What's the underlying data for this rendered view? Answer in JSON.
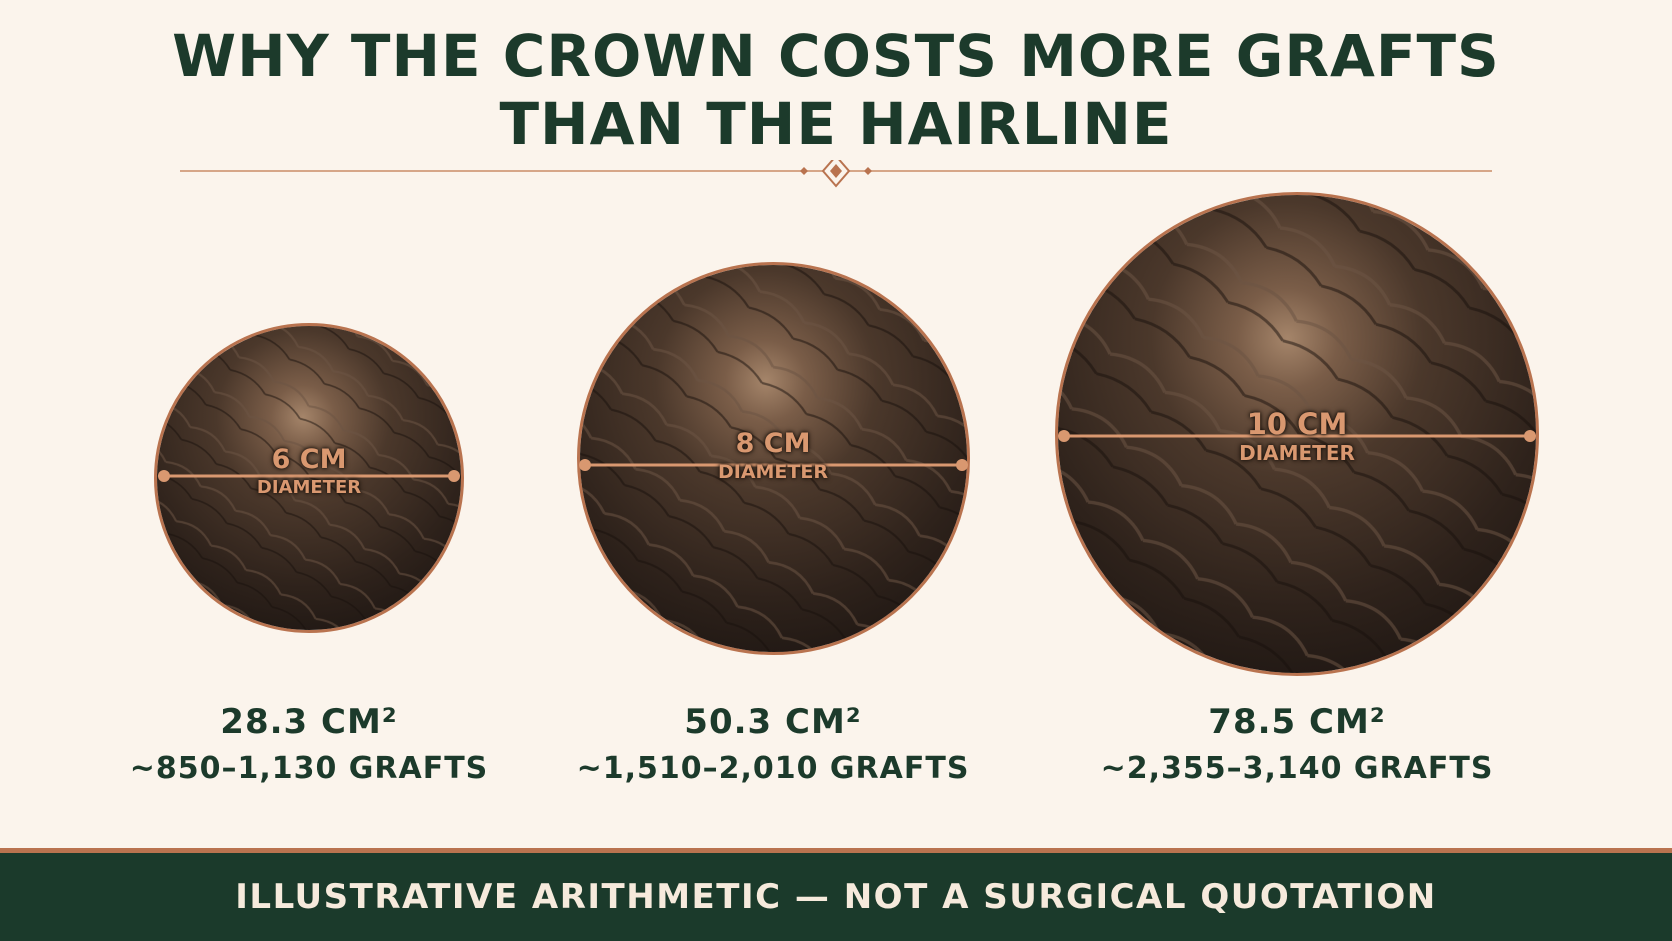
{
  "title": {
    "line1": "WHY THE CROWN COSTS MORE GRAFTS",
    "line2": "THAN THE HAIRLINE"
  },
  "crowns": [
    {
      "diameter_value": "6 CM",
      "diameter_label": "DIAMETER",
      "area": "28.3 CM²",
      "grafts": "~850–1,130 GRAFTS"
    },
    {
      "diameter_value": "8 CM",
      "diameter_label": "DIAMETER",
      "area": "50.3 CM²",
      "grafts": "~1,510–2,010 GRAFTS"
    },
    {
      "diameter_value": "10 CM",
      "diameter_label": "DIAMETER",
      "area": "78.5 CM²",
      "grafts": "~2,355–3,140 GRAFTS"
    }
  ],
  "footer": {
    "text": "ILLUSTRATIVE ARITHMETIC — NOT A SURGICAL QUOTATION"
  },
  "colors": {
    "background": "#fbf4ec",
    "heading": "#1c3a2b",
    "accent": "#b9734f",
    "footer_bg": "#1b3a2b",
    "footer_text": "#f6eadc"
  }
}
